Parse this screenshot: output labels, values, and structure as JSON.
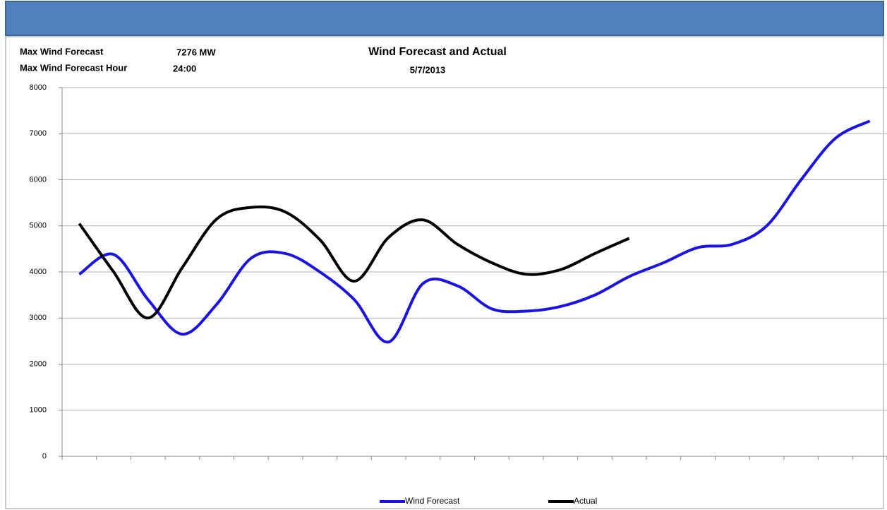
{
  "header": {
    "max_forecast_label": "Max Wind Forecast",
    "max_forecast_value": "7276 MW",
    "max_hour_label": "Max Wind Forecast Hour",
    "max_hour_value": "24:00"
  },
  "chart_data": {
    "type": "line",
    "title": "Wind Forecast and Actual",
    "subtitle": "5/7/2013",
    "categories": [
      null,
      null,
      null,
      null,
      null,
      null,
      null,
      null,
      null,
      null,
      null,
      null,
      null,
      null,
      null,
      null,
      null,
      null,
      null,
      null,
      null,
      null,
      null,
      null
    ],
    "series": [
      {
        "name": "Wind Forecast",
        "color": "#1a14e0",
        "values": [
          3950,
          4380,
          3400,
          2650,
          3300,
          4300,
          4400,
          4000,
          3400,
          2480,
          3750,
          3700,
          3200,
          3150,
          3250,
          3500,
          3900,
          4200,
          4530,
          4600,
          5000,
          6000,
          6900,
          7276
        ]
      },
      {
        "name": "Actual",
        "color": "#000000",
        "values": [
          5050,
          4000,
          3000,
          4100,
          5150,
          5400,
          5300,
          4700,
          3800,
          4750,
          5130,
          4600,
          4200,
          3950,
          4050,
          4400,
          4730,
          null,
          null,
          null,
          null,
          null,
          null,
          null
        ]
      }
    ],
    "ylim": [
      0,
      8000
    ],
    "yticks": [
      0,
      1000,
      2000,
      3000,
      4000,
      5000,
      6000,
      7000,
      8000
    ],
    "grid": true,
    "legend": "bottom"
  }
}
